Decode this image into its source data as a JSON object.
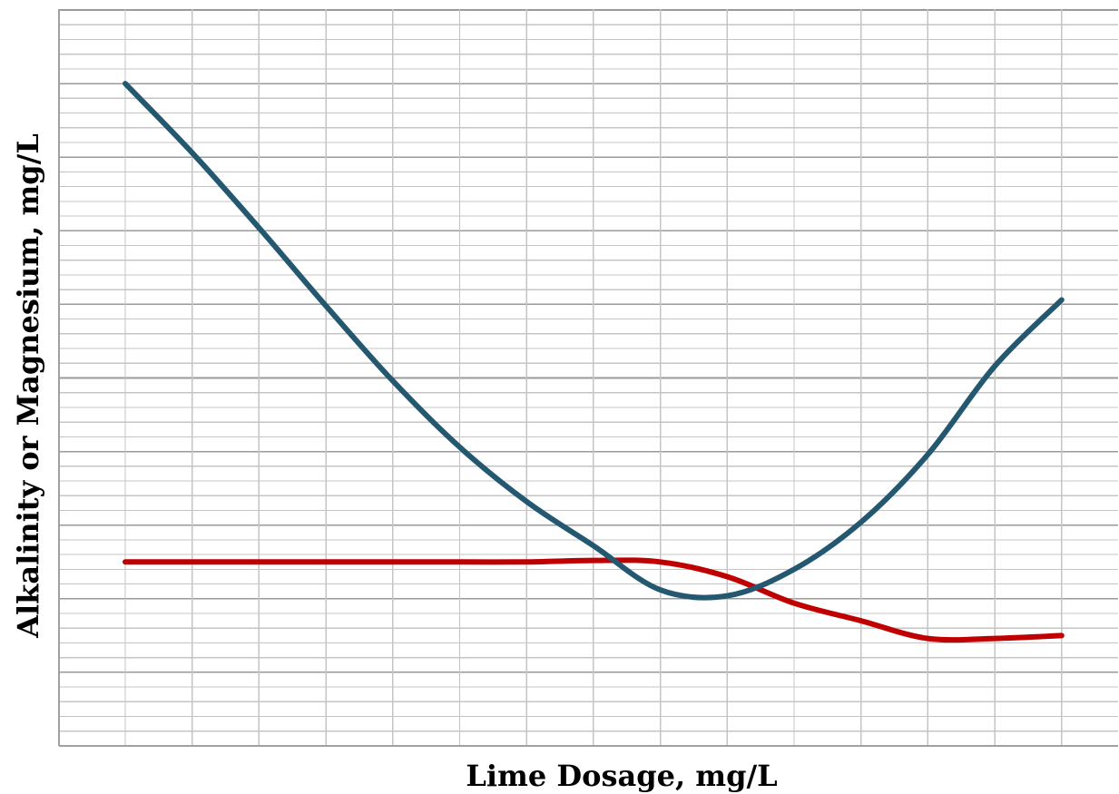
{
  "chart_data": {
    "type": "line",
    "title": "",
    "xlabel": "Lime Dosage, mg/L",
    "ylabel": "Alkalinity or Magnesium, mg/L",
    "xlim": [
      0,
      14
    ],
    "ylim": [
      0,
      50
    ],
    "x_tick_labels": [],
    "y_tick_labels": [],
    "grid": true,
    "legend": "none",
    "series": [
      {
        "color": "#245870",
        "x": [
          0,
          1,
          2,
          3,
          4,
          5,
          6,
          7,
          8,
          9,
          10,
          11,
          12,
          13,
          14
        ],
        "y": [
          45,
          40.3,
          35.2,
          29.9,
          24.8,
          20.3,
          16.6,
          13.6,
          10.6,
          10.2,
          12.0,
          15.2,
          19.8,
          25.8,
          30.3
        ]
      },
      {
        "color": "#c00000",
        "x": [
          0,
          1,
          2,
          3,
          4,
          5,
          6,
          7,
          8,
          9,
          10,
          11,
          12,
          13,
          14
        ],
        "y": [
          12.5,
          12.5,
          12.5,
          12.5,
          12.5,
          12.5,
          12.5,
          12.6,
          12.5,
          11.5,
          9.7,
          8.5,
          7.3,
          7.3,
          7.5
        ]
      }
    ]
  },
  "colors": {
    "background": "#ffffff",
    "grid_major": "#9a9a9a",
    "grid_minor": "#c4c4c4",
    "axis": "#a0a0a0"
  }
}
